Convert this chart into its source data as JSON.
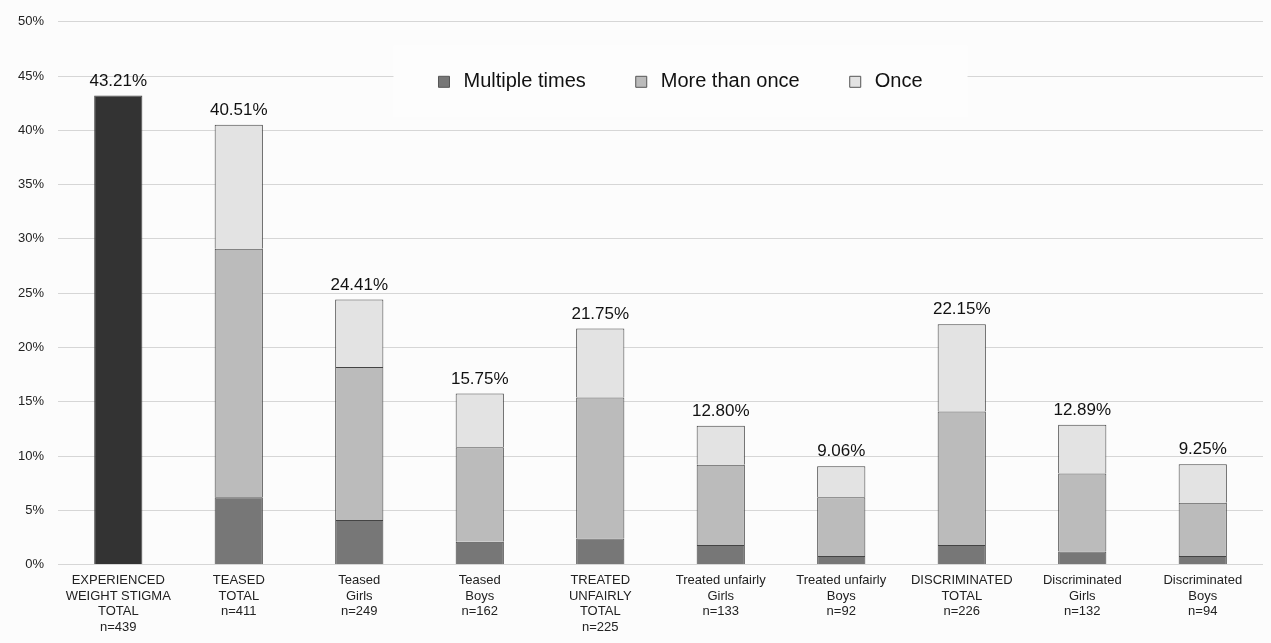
{
  "chart_data": {
    "type": "bar",
    "stacked": true,
    "categories": [
      "EXPERIENCED\nWEIGHT STIGMA\nTOTAL\nn=439",
      "TEASED\nTOTAL\nn=411",
      "Teased\nGirls\nn=249",
      "Teased\nBoys\nn=162",
      "TREATED\nUNFAIRLY\nTOTAL\nn=225",
      "Treated unfairly\nGirls\nn=133",
      "Treated unfairly\nBoys\nn=92",
      "DISCRIMINATED\nTOTAL\nn=226",
      "Discriminated\nGirls\nn=132",
      "Discriminated\nBoys\nn=94"
    ],
    "series": [
      {
        "color": "#333333",
        "values": [
          43.21,
          null,
          null,
          null,
          null,
          null,
          null,
          null,
          null,
          null
        ]
      },
      {
        "name": "Multiple times",
        "color": "#777777",
        "values": [
          null,
          6.2,
          4.1,
          2.1,
          2.4,
          1.8,
          0.8,
          1.8,
          1.2,
          0.8
        ]
      },
      {
        "name": "More than once",
        "color": "#bbbbbb",
        "values": [
          null,
          22.9,
          14.1,
          8.7,
          13.0,
          7.4,
          5.4,
          12.3,
          7.2,
          4.9
        ]
      },
      {
        "name": "Once",
        "color": "#e3e3e3",
        "values": [
          null,
          11.41,
          6.21,
          4.95,
          6.35,
          3.6,
          2.86,
          8.05,
          4.49,
          3.55
        ]
      }
    ],
    "totals": [
      "43.21%",
      "40.51%",
      "24.41%",
      "15.75%",
      "21.75%",
      "12.80%",
      "9.06%",
      "22.15%",
      "12.89%",
      "9.25%"
    ],
    "ylim": [
      0,
      50
    ],
    "yticks": [
      {
        "value": 0,
        "label": "0%"
      },
      {
        "value": 5,
        "label": "5%"
      },
      {
        "value": 10,
        "label": "10%"
      },
      {
        "value": 15,
        "label": "15%"
      },
      {
        "value": 20,
        "label": "20%"
      },
      {
        "value": 25,
        "label": "25%"
      },
      {
        "value": 30,
        "label": "30%"
      },
      {
        "value": 35,
        "label": "35%"
      },
      {
        "value": 40,
        "label": "40%"
      },
      {
        "value": 45,
        "label": "45%"
      },
      {
        "value": 50,
        "label": "50%"
      }
    ],
    "grid": "y",
    "legend": "top"
  }
}
